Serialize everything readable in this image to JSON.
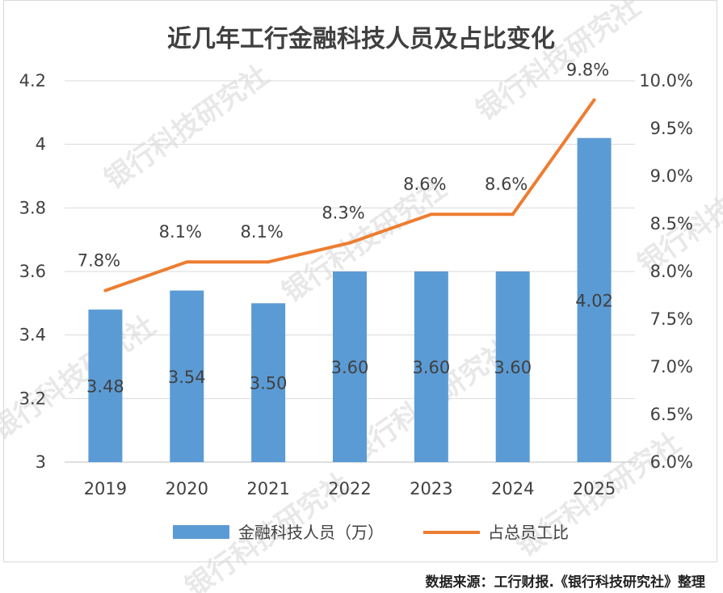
{
  "chart_data": {
    "title": "近几年工行金融科技人员及占比变化",
    "categories": [
      "2019",
      "2020",
      "2021",
      "2022",
      "2023",
      "2024",
      "2025"
    ],
    "series": [
      {
        "name": "金融科技人员（万）",
        "type": "bar",
        "axis": "left",
        "values": [
          3.48,
          3.54,
          3.5,
          3.6,
          3.6,
          3.6,
          4.02
        ],
        "labels": [
          "3.48",
          "3.54",
          "3.50",
          "3.60",
          "3.60",
          "3.60",
          "4.02"
        ],
        "color": "#5b9bd5"
      },
      {
        "name": "占总员工比",
        "type": "line",
        "axis": "right",
        "values": [
          7.8,
          8.1,
          8.1,
          8.3,
          8.6,
          8.6,
          9.8
        ],
        "labels": [
          "7.8%",
          "8.1%",
          "8.1%",
          "8.3%",
          "8.6%",
          "8.6%",
          "9.8%"
        ],
        "color": "#ed7d31"
      }
    ],
    "y_left": {
      "min": 3,
      "max": 4.2,
      "ticks": [
        3,
        3.2,
        3.4,
        3.6,
        3.8,
        4,
        4.2
      ],
      "tick_labels": [
        "3",
        "3.2",
        "3.4",
        "3.6",
        "3.8",
        "4",
        "4.2"
      ]
    },
    "y_right": {
      "min": 6.0,
      "max": 10.0,
      "ticks": [
        6.0,
        6.5,
        7.0,
        7.5,
        8.0,
        8.5,
        9.0,
        9.5,
        10.0
      ],
      "tick_labels": [
        "6.0%",
        "6.5%",
        "7.0%",
        "7.5%",
        "8.0%",
        "8.5%",
        "9.0%",
        "9.5%",
        "10.0%"
      ]
    },
    "grid": true,
    "legend_position": "bottom"
  },
  "watermark": "银行科技研究社",
  "source": "数据来源：工行财报.《银行科技研究社》整理"
}
